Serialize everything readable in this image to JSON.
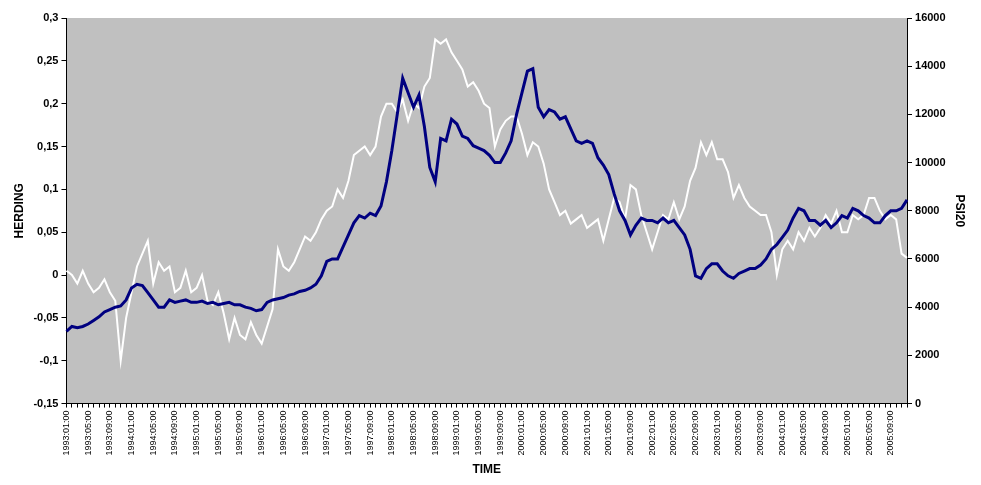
{
  "chart_data": {
    "type": "line",
    "x_label": "TIME",
    "y_label": "HERDING",
    "y2_label": "PSI20",
    "grid": false,
    "categories": [
      "1993:01:00",
      null,
      null,
      null,
      "1993:05:00",
      null,
      null,
      null,
      "1993:09:00",
      null,
      null,
      null,
      "1994:01:00",
      null,
      null,
      null,
      "1994:05:00",
      null,
      null,
      null,
      "1994:09:00",
      null,
      null,
      null,
      "1995:01:00",
      null,
      null,
      null,
      "1995:05:00",
      null,
      null,
      null,
      "1995:09:00",
      null,
      null,
      null,
      "1996:01:00",
      null,
      null,
      null,
      "1996:05:00",
      null,
      null,
      null,
      "1996:09:00",
      null,
      null,
      null,
      "1997:01:00",
      null,
      null,
      null,
      "1997:05:00",
      null,
      null,
      null,
      "1997:09:00",
      null,
      null,
      null,
      "1998:01:00",
      null,
      null,
      null,
      "1998:05:00",
      null,
      null,
      null,
      "1998:09:00",
      null,
      null,
      null,
      "1999:01:00",
      null,
      null,
      null,
      "1999:05:00",
      null,
      null,
      null,
      "1999:09:00",
      null,
      null,
      null,
      "2000:01:00",
      null,
      null,
      null,
      "2000:05:00",
      null,
      null,
      null,
      "2000:09:00",
      null,
      null,
      null,
      "2001:01:00",
      null,
      null,
      null,
      "2001:05:00",
      null,
      null,
      null,
      "2001:09:00",
      null,
      null,
      null,
      "2002:01:00",
      null,
      null,
      null,
      "2002:05:00",
      null,
      null,
      null,
      "2002:09:00",
      null,
      null,
      null,
      "2003:01:00",
      null,
      null,
      null,
      "2003:05:00",
      null,
      null,
      null,
      "2003:09:00",
      null,
      null,
      null,
      "2004:01:00",
      null,
      null,
      null,
      "2004:05:00",
      null,
      null,
      null,
      "2004:09:00",
      null,
      null,
      null,
      "2005:01:00",
      null,
      null,
      null,
      "2005:05:00",
      null,
      null,
      null,
      "2005:09:00",
      null,
      null,
      null
    ],
    "series": [
      {
        "name": "HERDING",
        "color": "#ffffff",
        "axis": "y",
        "values": [
          0.005,
          0.0,
          -0.01,
          0.005,
          -0.01,
          -0.02,
          -0.015,
          -0.005,
          -0.02,
          -0.03,
          -0.1,
          -0.05,
          -0.02,
          0.01,
          0.025,
          0.04,
          -0.01,
          0.015,
          0.005,
          0.01,
          -0.02,
          -0.015,
          0.005,
          -0.02,
          -0.015,
          0.0,
          -0.03,
          -0.035,
          -0.02,
          -0.045,
          -0.075,
          -0.05,
          -0.07,
          -0.075,
          -0.055,
          -0.07,
          -0.08,
          -0.06,
          -0.04,
          0.03,
          0.01,
          0.005,
          0.015,
          0.03,
          0.045,
          0.04,
          0.05,
          0.065,
          0.075,
          0.08,
          0.1,
          0.09,
          0.11,
          0.14,
          0.145,
          0.15,
          0.14,
          0.15,
          0.185,
          0.2,
          0.2,
          0.19,
          0.205,
          0.18,
          0.2,
          0.195,
          0.22,
          0.23,
          0.275,
          0.27,
          0.275,
          0.26,
          0.25,
          0.24,
          0.22,
          0.225,
          0.215,
          0.2,
          0.195,
          0.15,
          0.17,
          0.18,
          0.185,
          0.185,
          0.165,
          0.14,
          0.155,
          0.15,
          0.13,
          0.1,
          0.085,
          0.07,
          0.075,
          0.06,
          0.065,
          0.07,
          0.055,
          0.06,
          0.065,
          0.04,
          0.065,
          0.09,
          0.085,
          0.065,
          0.105,
          0.1,
          0.07,
          0.05,
          0.03,
          0.05,
          0.07,
          0.065,
          0.085,
          0.065,
          0.08,
          0.11,
          0.125,
          0.155,
          0.14,
          0.155,
          0.135,
          0.135,
          0.12,
          0.09,
          0.105,
          0.09,
          0.08,
          0.075,
          0.07,
          0.07,
          0.05,
          0.0,
          0.03,
          0.04,
          0.03,
          0.05,
          0.04,
          0.055,
          0.045,
          0.055,
          0.07,
          0.06,
          0.075,
          0.05,
          0.05,
          0.07,
          0.065,
          0.07,
          0.09,
          0.09,
          0.075,
          0.065,
          0.07,
          0.065,
          0.025,
          0.02
        ]
      },
      {
        "name": "PSI20",
        "color": "#000080",
        "axis": "y2",
        "values": [
          3000,
          3200,
          3150,
          3200,
          3300,
          3450,
          3600,
          3800,
          3900,
          4000,
          4050,
          4300,
          4800,
          4950,
          4900,
          4600,
          4300,
          4000,
          4000,
          4300,
          4200,
          4250,
          4300,
          4200,
          4200,
          4250,
          4150,
          4200,
          4100,
          4150,
          4200,
          4100,
          4100,
          4000,
          3950,
          3850,
          3900,
          4200,
          4300,
          4350,
          4400,
          4500,
          4550,
          4650,
          4700,
          4800,
          4950,
          5300,
          5900,
          6000,
          6000,
          6500,
          7000,
          7500,
          7800,
          7700,
          7900,
          7800,
          8200,
          9200,
          10500,
          12000,
          13500,
          12900,
          12300,
          12800,
          11500,
          9800,
          9200,
          11000,
          10900,
          11800,
          11600,
          11100,
          11000,
          10700,
          10600,
          10500,
          10300,
          10000,
          10000,
          10400,
          10900,
          12000,
          12900,
          13800,
          13900,
          12300,
          11900,
          12200,
          12100,
          11800,
          11900,
          11400,
          10900,
          10800,
          10900,
          10800,
          10200,
          9900,
          9500,
          8700,
          8000,
          7600,
          7000,
          7400,
          7700,
          7600,
          7600,
          7500,
          7700,
          7500,
          7600,
          7300,
          7000,
          6400,
          5300,
          5200,
          5600,
          5800,
          5800,
          5500,
          5300,
          5200,
          5400,
          5500,
          5600,
          5600,
          5750,
          6000,
          6400,
          6600,
          6900,
          7200,
          7700,
          8100,
          8000,
          7600,
          7600,
          7400,
          7600,
          7300,
          7500,
          7800,
          7700,
          8100,
          8000,
          7800,
          7700,
          7500,
          7500,
          7800,
          8000,
          8000,
          8100,
          8450
        ]
      }
    ],
    "ylim": [
      -0.15,
      0.3
    ],
    "yticks": [
      {
        "value": -0.15,
        "label": "-0,15"
      },
      {
        "value": -0.1,
        "label": "-0,1"
      },
      {
        "value": -0.05,
        "label": "-0,05"
      },
      0,
      {
        "value": 0.05,
        "label": "0,05"
      },
      {
        "value": 0.1,
        "label": "0,1"
      },
      {
        "value": 0.15,
        "label": "0,15"
      },
      {
        "value": 0.2,
        "label": "0,2"
      },
      {
        "value": 0.25,
        "label": "0,25"
      },
      {
        "value": 0.3,
        "label": "0,3"
      }
    ],
    "y2lim": [
      0,
      16000
    ],
    "y2ticks": [
      0,
      2000,
      4000,
      6000,
      8000,
      10000,
      12000,
      14000,
      16000
    ]
  }
}
